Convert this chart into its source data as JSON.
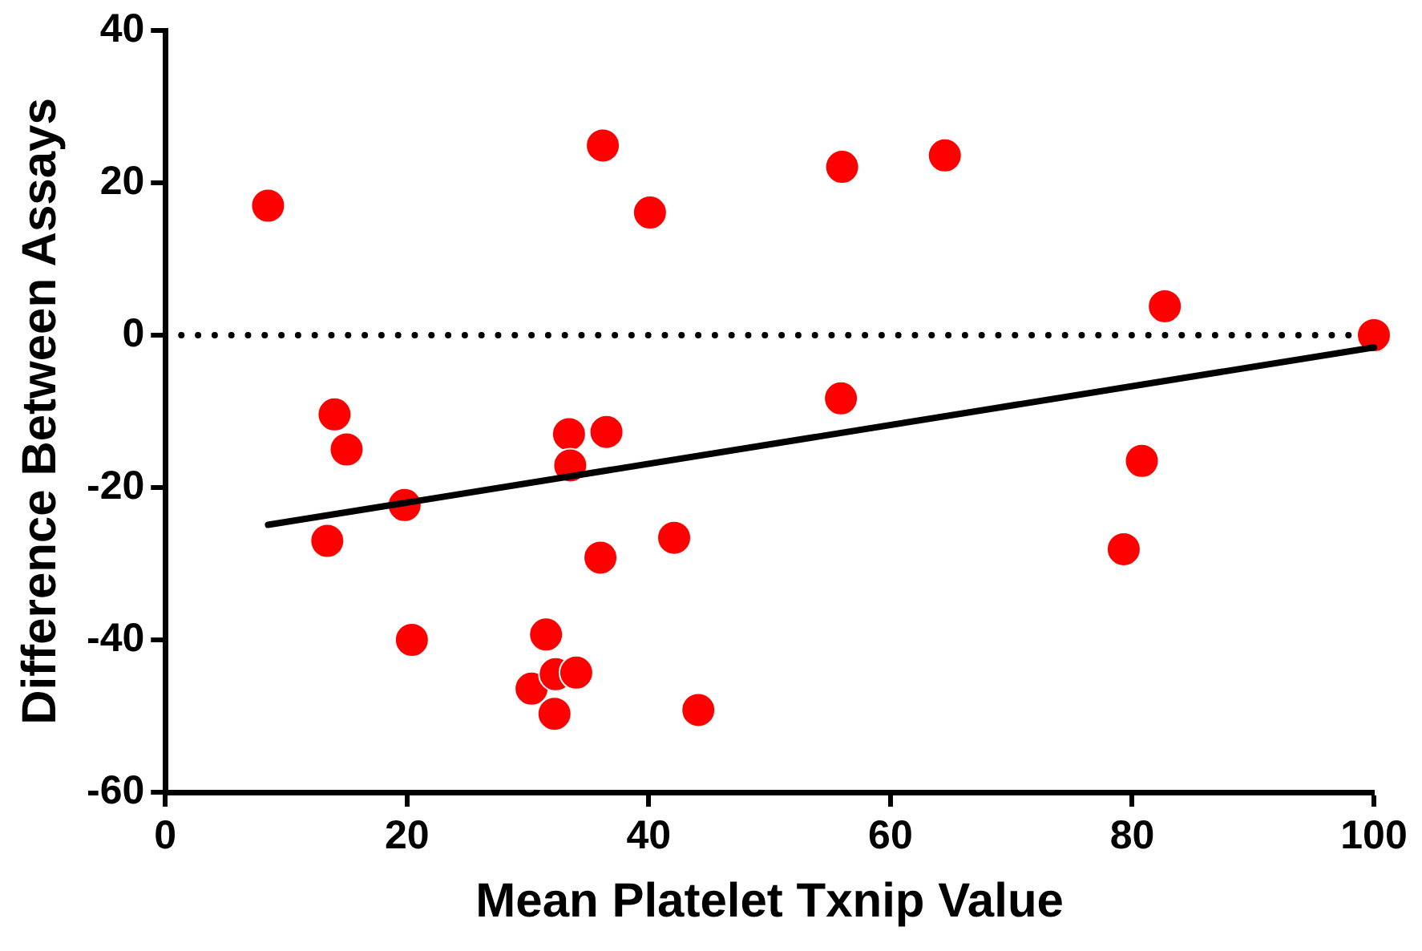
{
  "chart_data": {
    "type": "scatter",
    "xlabel": "Mean Platelet Txnip Value",
    "ylabel": "Difference Between Assays",
    "xlim": [
      0,
      100
    ],
    "xticks": [
      0,
      20,
      40,
      60,
      80,
      100
    ],
    "ylim": [
      -60,
      40
    ],
    "yticks": [
      -60,
      -40,
      -20,
      0,
      20,
      40
    ],
    "grid": false,
    "legend": false,
    "series": [
      {
        "type": "scatter",
        "color": "#ff0000",
        "marker": "circle",
        "x": [
          8.5,
          36.2,
          40.1,
          14.0,
          15.0,
          19.8,
          13.4,
          33.4,
          36.5,
          33.5,
          42.1,
          36.0,
          20.4,
          31.5,
          30.3,
          32.3,
          34.0,
          32.2,
          44.1,
          56.0,
          64.5,
          55.9,
          82.7,
          100.0,
          80.8,
          79.3
        ],
        "values": [
          17.0,
          24.9,
          16.1,
          -10.4,
          -15.0,
          -22.3,
          -27.0,
          -13.0,
          -12.7,
          -17.1,
          -26.6,
          -29.2,
          -40.0,
          -39.3,
          -46.4,
          -44.5,
          -44.3,
          -49.7,
          -49.2,
          22.1,
          23.6,
          -8.3,
          3.8,
          0,
          -16.5,
          -28.1
        ]
      },
      {
        "type": "line",
        "color": "#000000",
        "marker": "none",
        "line_style": "solid",
        "x": [
          8.5,
          100
        ],
        "values": [
          -24.9,
          -1.6
        ]
      }
    ],
    "ref_lines": [
      {
        "axis": "y",
        "value": 0,
        "color": "#000000",
        "line_style": "dotted"
      }
    ]
  }
}
